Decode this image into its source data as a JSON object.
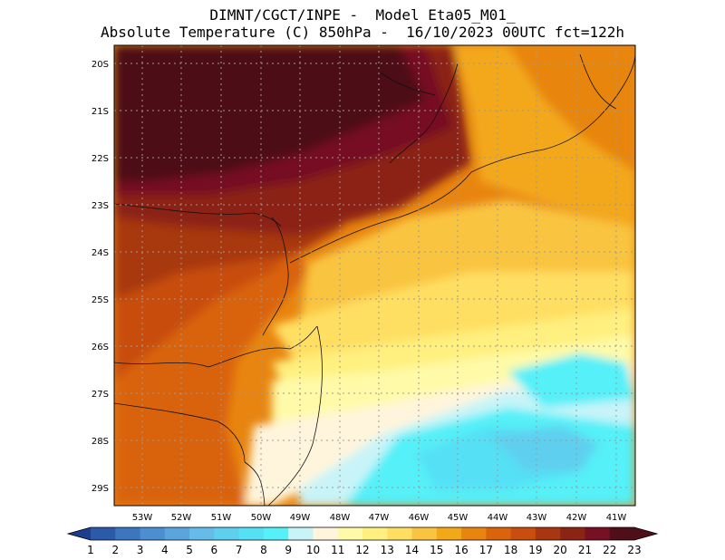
{
  "header": {
    "line1": "DIMNT/CGCT/INPE -  Model Eta05_M01_",
    "line2": "Absolute Temperature (C) 850hPa -  16/10/2023 00UTC fct=122h"
  },
  "map": {
    "lat_labels": [
      "20S",
      "21S",
      "22S",
      "23S",
      "24S",
      "25S",
      "26S",
      "27S",
      "28S",
      "29S"
    ],
    "lon_labels": [
      "53W",
      "52W",
      "51W",
      "50W",
      "49W",
      "48W",
      "47W",
      "46W",
      "45W",
      "44W",
      "43W",
      "42W",
      "41W"
    ],
    "lat_range": [
      -29.4,
      -19.4
    ],
    "lon_range": [
      -53.8,
      -40.6
    ]
  },
  "colorbar": {
    "labels": [
      "1",
      "2",
      "3",
      "4",
      "5",
      "6",
      "7",
      "8",
      "9",
      "10",
      "11",
      "12",
      "13",
      "14",
      "15",
      "16",
      "17",
      "18",
      "19",
      "20",
      "21",
      "22",
      "23"
    ],
    "colors": [
      "#1c3e8f",
      "#2a5aa8",
      "#3b76bf",
      "#4b8fd1",
      "#5aa5de",
      "#66bce8",
      "#5fcfef",
      "#55e0f5",
      "#55f0f8",
      "#c8f4f8",
      "#fff5dc",
      "#fffaa8",
      "#fff07f",
      "#ffdf62",
      "#f9c440",
      "#f3a81a",
      "#e88510",
      "#d9640c",
      "#c84d0e",
      "#a83711",
      "#8c2415",
      "#761022",
      "#4e0f18"
    ]
  }
}
